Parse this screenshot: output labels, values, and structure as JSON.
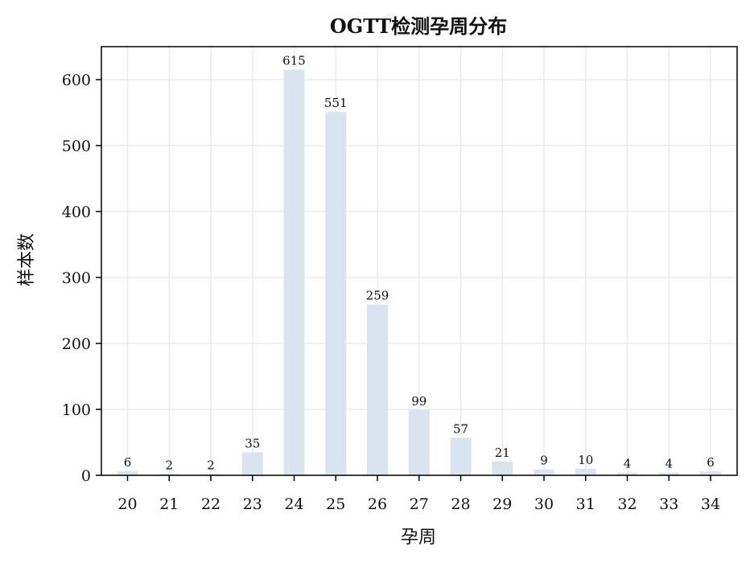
{
  "chart_data": {
    "type": "bar",
    "title": "OGTT检测孕周分布",
    "xlabel": "孕周",
    "ylabel": "样本数",
    "categories": [
      "20",
      "21",
      "22",
      "23",
      "24",
      "25",
      "26",
      "27",
      "28",
      "29",
      "30",
      "31",
      "32",
      "33",
      "34"
    ],
    "values": [
      6,
      2,
      2,
      35,
      615,
      551,
      259,
      99,
      57,
      21,
      9,
      10,
      4,
      4,
      6
    ],
    "data_labels": [
      "6",
      "2",
      "2",
      "35",
      "615",
      "551",
      "259",
      "99",
      "57",
      "21",
      "9",
      "10",
      "4",
      "4",
      "6"
    ],
    "yticks": [
      0,
      100,
      200,
      300,
      400,
      500,
      600
    ],
    "ylim": [
      0,
      650
    ],
    "grid": true,
    "bar_color": "#dae4f1",
    "grid_color": "#ebebeb",
    "axis_color": "#000000"
  }
}
